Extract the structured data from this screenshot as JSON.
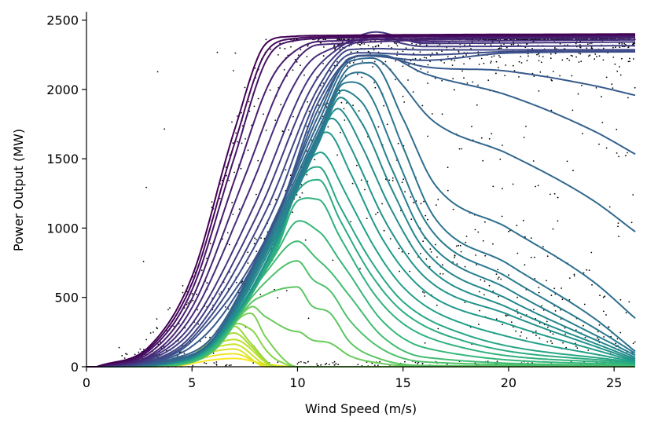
{
  "chart_data": {
    "type": "line",
    "title": "",
    "xlabel": "Wind Speed (m/s)",
    "ylabel": "Power Output (MW)",
    "xlim": [
      0,
      26
    ],
    "ylim": [
      0,
      2560
    ],
    "x_ticks": [
      0,
      5,
      10,
      15,
      20,
      25
    ],
    "y_ticks": [
      0,
      500,
      1000,
      1500,
      2000,
      2500
    ],
    "grid": false,
    "legend": "none",
    "colormap": "viridis",
    "family_count": 40,
    "scatter_point_count": 1700,
    "scatter_color": "#000000",
    "series": [
      {
        "x": [
          0.5,
          3,
          5,
          7,
          8.5,
          9.5,
          12,
          26
        ],
        "values": [
          0,
          150,
          650,
          1700,
          2330,
          2380,
          2390,
          2400
        ]
      },
      {
        "x": [
          0.5,
          3,
          5,
          7,
          8.5,
          9.5,
          12,
          26
        ],
        "values": [
          0,
          120,
          550,
          1500,
          2200,
          2340,
          2370,
          2390
        ]
      },
      {
        "x": [
          0.5,
          3,
          5,
          7.5,
          9.5,
          11,
          26
        ],
        "values": [
          0,
          80,
          420,
          1350,
          2100,
          2320,
          2370
        ]
      },
      {
        "x": [
          0.5,
          3,
          5,
          8,
          10.5,
          12,
          13.7,
          16,
          26
        ],
        "values": [
          0,
          60,
          300,
          1150,
          2050,
          2300,
          2420,
          2330,
          2340
        ]
      },
      {
        "x": [
          0.5,
          3,
          5,
          8.5,
          11,
          12.5,
          26
        ],
        "values": [
          0,
          40,
          220,
          1100,
          2000,
          2280,
          2280
        ]
      },
      {
        "x": [
          0.5,
          3,
          5,
          9,
          11,
          13,
          16,
          20,
          26
        ],
        "values": [
          0,
          30,
          180,
          1050,
          1900,
          2240,
          2200,
          2260,
          2270
        ]
      },
      {
        "x": [
          1,
          4,
          6,
          9,
          11,
          12.5,
          14,
          16,
          20,
          24,
          26
        ],
        "values": [
          0,
          50,
          200,
          1100,
          1800,
          2230,
          2250,
          2100,
          1900,
          1600,
          1400
        ]
      },
      {
        "x": [
          1,
          4,
          6,
          9,
          11,
          12.5,
          13.5,
          15,
          16.5,
          20,
          24,
          26
        ],
        "values": [
          0,
          40,
          200,
          1050,
          1700,
          2150,
          2180,
          1700,
          1150,
          800,
          400,
          120
        ]
      },
      {
        "x": [
          1,
          4,
          6,
          9,
          11,
          12.2,
          13,
          14.5,
          16,
          20,
          26
        ],
        "values": [
          0,
          30,
          190,
          1000,
          1650,
          2030,
          2000,
          1500,
          1000,
          600,
          90
        ]
      },
      {
        "x": [
          1,
          4,
          6,
          9,
          11,
          12,
          13,
          14.5,
          16,
          20,
          26
        ],
        "values": [
          0,
          30,
          180,
          950,
          1600,
          1920,
          1700,
          1200,
          800,
          450,
          60
        ]
      },
      {
        "x": [
          1,
          4,
          6,
          9,
          10.5,
          11.5,
          12.5,
          14,
          16,
          20,
          26
        ],
        "values": [
          0,
          25,
          170,
          900,
          1550,
          1780,
          1500,
          1000,
          600,
          350,
          40
        ]
      },
      {
        "x": [
          1,
          4,
          6,
          9,
          10.5,
          11,
          12,
          13.5,
          15,
          18,
          26
        ],
        "values": [
          0,
          25,
          160,
          900,
          1450,
          1480,
          1200,
          800,
          500,
          250,
          30
        ]
      },
      {
        "x": [
          1,
          4,
          6,
          9,
          10,
          11,
          12,
          13.5,
          15,
          18,
          26
        ],
        "values": [
          0,
          20,
          150,
          850,
          1250,
          1290,
          1000,
          600,
          350,
          150,
          20
        ]
      },
      {
        "x": [
          1,
          4,
          6,
          8.5,
          10,
          11,
          12.5,
          14,
          16,
          26
        ],
        "values": [
          0,
          15,
          130,
          700,
          950,
          820,
          560,
          250,
          80,
          10
        ]
      },
      {
        "x": [
          1,
          4,
          6,
          8,
          10,
          10.7,
          11.5,
          12.5,
          14,
          16,
          26
        ],
        "values": [
          0,
          10,
          110,
          500,
          660,
          500,
          450,
          200,
          60,
          10,
          5
        ]
      },
      {
        "x": [
          1,
          4,
          6,
          7.8,
          8.5,
          10,
          26
        ],
        "values": [
          0,
          5,
          120,
          410,
          230,
          0,
          0
        ]
      },
      {
        "x": [
          1,
          4,
          6,
          7,
          7.8,
          9,
          26
        ],
        "values": [
          0,
          5,
          200,
          300,
          170,
          0,
          0
        ]
      },
      {
        "x": [
          1,
          4,
          6,
          7,
          9,
          26
        ],
        "values": [
          0,
          5,
          160,
          200,
          0,
          0
        ]
      },
      {
        "x": [
          1,
          4,
          6,
          7,
          8.5,
          26
        ],
        "values": [
          0,
          5,
          110,
          130,
          0,
          0
        ]
      },
      {
        "x": [
          1,
          4,
          6,
          7,
          8.5,
          10,
          26
        ],
        "values": [
          0,
          3,
          50,
          60,
          20,
          0,
          0
        ]
      }
    ]
  }
}
